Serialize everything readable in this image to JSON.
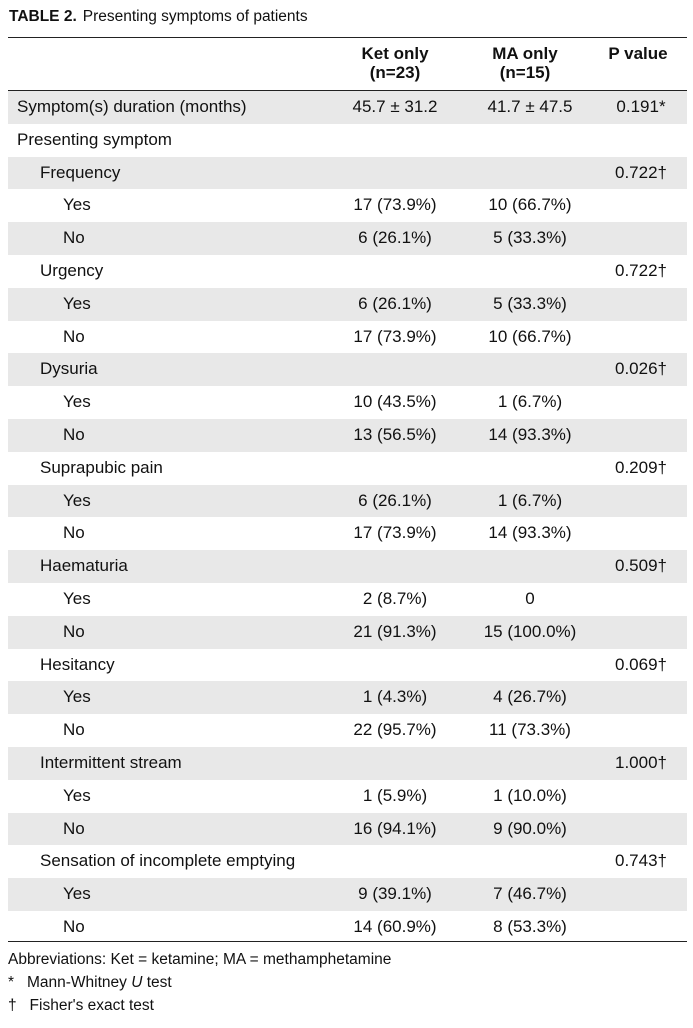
{
  "caption": {
    "label": "TABLE 2.",
    "title": "Presenting symptoms of patients"
  },
  "columns": {
    "ket": {
      "line1": "Ket only",
      "line2": "(n=23)"
    },
    "ma": {
      "line1": "MA only",
      "line2": "(n=15)"
    },
    "pvalue": "P value"
  },
  "rows": [
    {
      "label": "Symptom(s) duration (months)",
      "indent": 0,
      "ket": "45.7 ± 31.2",
      "ma": "41.7 ± 47.5",
      "p": "0.191*",
      "shade": true
    },
    {
      "label": "Presenting symptom",
      "indent": 0,
      "ket": "",
      "ma": "",
      "p": "",
      "shade": false
    },
    {
      "label": "Frequency",
      "indent": 1,
      "ket": "",
      "ma": "",
      "p": "0.722†",
      "shade": true
    },
    {
      "label": "Yes",
      "indent": 2,
      "ket": "17 (73.9%)",
      "ma": "10 (66.7%)",
      "p": "",
      "shade": false
    },
    {
      "label": "No",
      "indent": 2,
      "ket": "6 (26.1%)",
      "ma": "5 (33.3%)",
      "p": "",
      "shade": true
    },
    {
      "label": "Urgency",
      "indent": 1,
      "ket": "",
      "ma": "",
      "p": "0.722†",
      "shade": false
    },
    {
      "label": "Yes",
      "indent": 2,
      "ket": "6 (26.1%)",
      "ma": "5 (33.3%)",
      "p": "",
      "shade": true
    },
    {
      "label": "No",
      "indent": 2,
      "ket": "17 (73.9%)",
      "ma": "10 (66.7%)",
      "p": "",
      "shade": false
    },
    {
      "label": "Dysuria",
      "indent": 1,
      "ket": "",
      "ma": "",
      "p": "0.026†",
      "shade": true
    },
    {
      "label": "Yes",
      "indent": 2,
      "ket": "10 (43.5%)",
      "ma": "1 (6.7%)",
      "p": "",
      "shade": false
    },
    {
      "label": "No",
      "indent": 2,
      "ket": "13 (56.5%)",
      "ma": "14 (93.3%)",
      "p": "",
      "shade": true
    },
    {
      "label": "Suprapubic pain",
      "indent": 1,
      "ket": "",
      "ma": "",
      "p": "0.209†",
      "shade": false
    },
    {
      "label": "Yes",
      "indent": 2,
      "ket": "6 (26.1%)",
      "ma": "1 (6.7%)",
      "p": "",
      "shade": true
    },
    {
      "label": "No",
      "indent": 2,
      "ket": "17 (73.9%)",
      "ma": "14 (93.3%)",
      "p": "",
      "shade": false
    },
    {
      "label": "Haematuria",
      "indent": 1,
      "ket": "",
      "ma": "",
      "p": "0.509†",
      "shade": true
    },
    {
      "label": "Yes",
      "indent": 2,
      "ket": "2 (8.7%)",
      "ma": "0",
      "p": "",
      "shade": false
    },
    {
      "label": "No",
      "indent": 2,
      "ket": "21 (91.3%)",
      "ma": "15 (100.0%)",
      "p": "",
      "shade": true
    },
    {
      "label": "Hesitancy",
      "indent": 1,
      "ket": "",
      "ma": "",
      "p": "0.069†",
      "shade": false
    },
    {
      "label": "Yes",
      "indent": 2,
      "ket": "1 (4.3%)",
      "ma": "4 (26.7%)",
      "p": "",
      "shade": true
    },
    {
      "label": "No",
      "indent": 2,
      "ket": "22 (95.7%)",
      "ma": "11 (73.3%)",
      "p": "",
      "shade": false
    },
    {
      "label": "Intermittent stream",
      "indent": 1,
      "ket": "",
      "ma": "",
      "p": "1.000†",
      "shade": true
    },
    {
      "label": "Yes",
      "indent": 2,
      "ket": "1 (5.9%)",
      "ma": "1 (10.0%)",
      "p": "",
      "shade": false
    },
    {
      "label": "No",
      "indent": 2,
      "ket": "16 (94.1%)",
      "ma": "9 (90.0%)",
      "p": "",
      "shade": true
    },
    {
      "label": "Sensation of incomplete emptying",
      "indent": 1,
      "ket": "",
      "ma": "",
      "p": "0.743†",
      "shade": false
    },
    {
      "label": "Yes",
      "indent": 2,
      "ket": "9 (39.1%)",
      "ma": "7 (46.7%)",
      "p": "",
      "shade": true
    },
    {
      "label": "No",
      "indent": 2,
      "ket": "14 (60.9%)",
      "ma": "8 (53.3%)",
      "p": "",
      "shade": false
    }
  ],
  "footnotes": {
    "abbreviations": "Abbreviations: Ket = ketamine; MA = methamphetamine",
    "note1_symbol": "*",
    "note1_text_a": "Mann-Whitney ",
    "note1_text_u": "U",
    "note1_text_b": " test",
    "note2_symbol": "†",
    "note2_text": "Fisher's exact test"
  }
}
